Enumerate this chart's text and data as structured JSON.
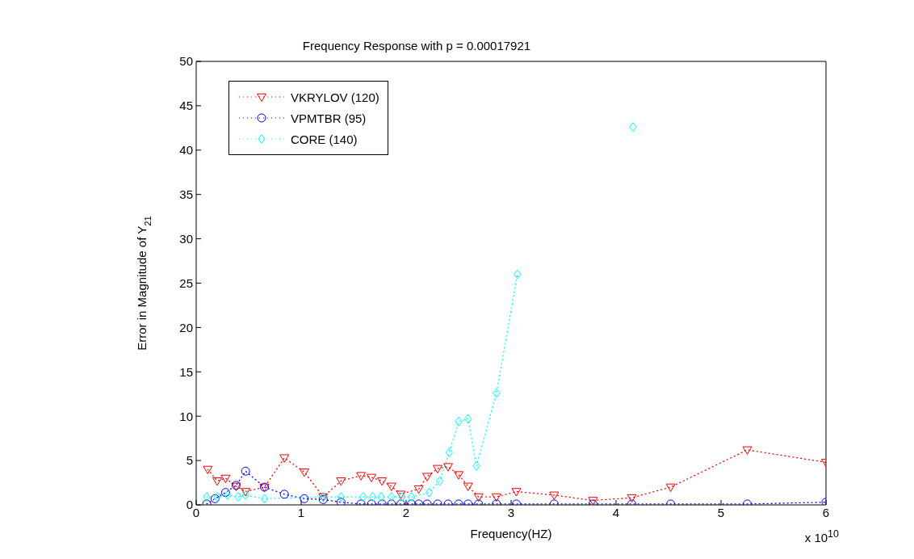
{
  "chart_data": {
    "type": "line",
    "title": "Frequency Response with p = 0.00017921",
    "xlabel": "Frequency(HZ)",
    "ylabel": "Error in Magnitude of Y$_{21}$",
    "annotations": [
      "x 10$^{10}$"
    ],
    "xlim": [
      0,
      6
    ],
    "xticks": [
      0,
      1,
      2,
      3,
      4,
      5,
      6
    ],
    "ylim": [
      0,
      50
    ],
    "yticks": [
      0,
      5,
      10,
      15,
      20,
      25,
      30,
      35,
      40,
      45,
      50
    ],
    "legend": "top left",
    "line_style": "dotted",
    "series": [
      {
        "name": "VKRYLOV (120)",
        "color": "#ff0000",
        "marker": "triangle",
        "x": [
          0.11,
          0.2,
          0.28,
          0.38,
          0.47,
          0.65,
          0.84,
          1.03,
          1.21,
          1.38,
          1.57,
          1.67,
          1.77,
          1.86,
          1.95,
          2.12,
          2.2,
          2.3,
          2.4,
          2.5,
          2.59,
          2.69,
          2.86,
          3.05,
          3.41,
          3.78,
          4.15,
          4.52,
          5.25,
          6.0
        ],
        "values": [
          4.0,
          2.7,
          3.0,
          2.1,
          1.5,
          2.0,
          5.3,
          3.7,
          0.9,
          2.7,
          3.3,
          3.1,
          2.7,
          2.1,
          1.2,
          1.8,
          3.2,
          4.1,
          4.3,
          3.4,
          2.1,
          0.9,
          0.9,
          1.5,
          1.1,
          0.5,
          0.8,
          2.0,
          6.2,
          4.8
        ]
      },
      {
        "name": "VPMTBR (95)",
        "color": "#0000ff",
        "marker": "circle",
        "x": [
          0.1,
          0.18,
          0.28,
          0.38,
          0.47,
          0.65,
          0.84,
          1.03,
          1.21,
          1.38,
          1.57,
          1.67,
          1.77,
          1.86,
          1.95,
          2.05,
          2.12,
          2.2,
          2.3,
          2.4,
          2.5,
          2.59,
          2.69,
          2.86,
          3.05,
          3.41,
          3.78,
          4.15,
          4.52,
          5.25,
          6.0
        ],
        "values": [
          0.1,
          0.7,
          1.4,
          2.2,
          3.8,
          2.0,
          1.2,
          0.7,
          0.6,
          0.3,
          0.1,
          0.1,
          0.1,
          0.1,
          0.1,
          0.1,
          0.1,
          0.1,
          0.1,
          0.1,
          0.1,
          0.1,
          0.1,
          0.1,
          0.1,
          0.1,
          0.1,
          0.1,
          0.1,
          0.1,
          0.3
        ]
      },
      {
        "name": "CORE (140)",
        "color": "#00ffff",
        "marker": "diamond",
        "x": [
          0.1,
          0.2,
          0.3,
          0.4,
          0.47,
          0.65,
          1.21,
          1.38,
          1.59,
          1.68,
          1.76,
          1.86,
          1.96,
          2.05,
          2.22,
          2.32,
          2.41,
          2.5,
          2.59,
          2.67,
          2.86,
          3.06,
          3.6,
          4.16
        ],
        "values": [
          0.9,
          0.9,
          1.1,
          0.9,
          1.1,
          0.7,
          0.9,
          0.9,
          0.9,
          0.9,
          0.9,
          0.9,
          0.9,
          0.9,
          1.4,
          2.7,
          5.9,
          9.4,
          9.7,
          4.4,
          12.6,
          26,
          null,
          42.6
        ]
      }
    ]
  }
}
